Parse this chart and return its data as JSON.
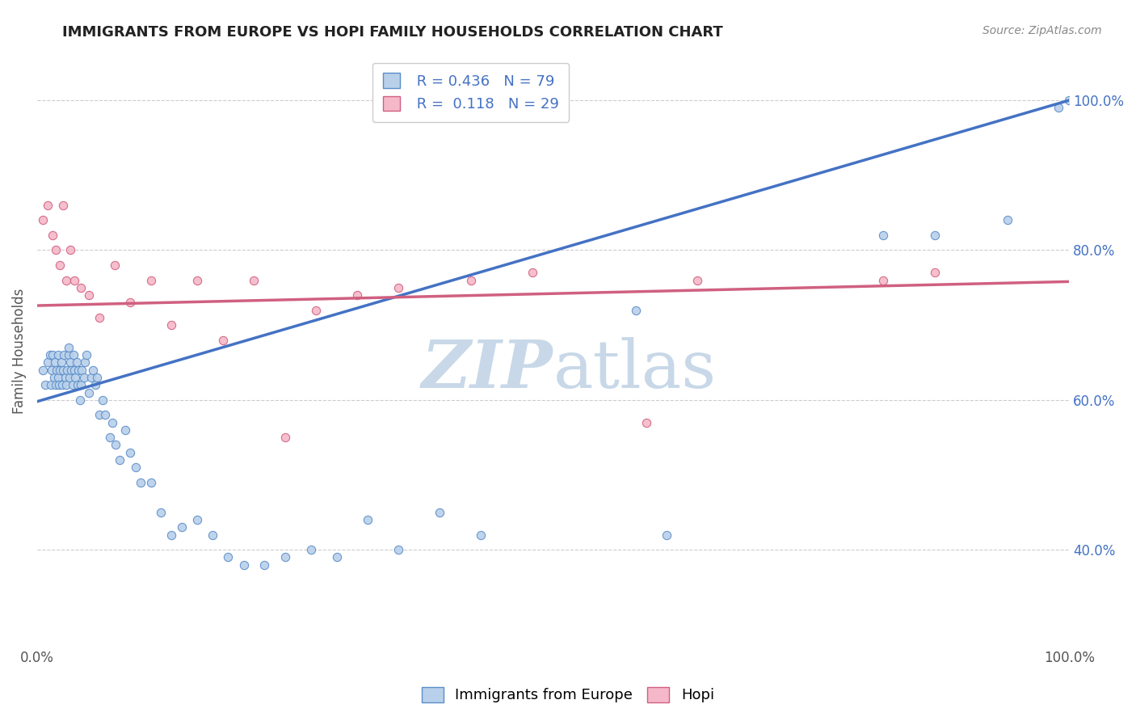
{
  "title": "IMMIGRANTS FROM EUROPE VS HOPI FAMILY HOUSEHOLDS CORRELATION CHART",
  "source": "Source: ZipAtlas.com",
  "ylabel": "Family Households",
  "legend_blue_r": "R = 0.436",
  "legend_blue_n": "N = 79",
  "legend_pink_r": "R =  0.118",
  "legend_pink_n": "N = 29",
  "blue_fill": "#b8d0ea",
  "blue_edge": "#5b8dc8",
  "pink_fill": "#f5b8c8",
  "pink_edge": "#d06080",
  "blue_line": "#4472c4",
  "pink_line": "#d06080",
  "watermark_color": "#c8d8e8",
  "title_color": "#222222",
  "source_color": "#888888",
  "ylabel_color": "#555555",
  "tick_color": "#555555",
  "right_tick_color": "#4472c4",
  "grid_color": "#cccccc",
  "yticks": [
    0.4,
    0.6,
    0.8,
    1.0
  ],
  "ytick_labels": [
    "40.0%",
    "60.0%",
    "80.0%",
    "100.0%"
  ],
  "xticks": [
    0.0,
    1.0
  ],
  "xtick_labels": [
    "0.0%",
    "100.0%"
  ],
  "xlim": [
    0,
    1
  ],
  "ylim": [
    0.27,
    1.06
  ],
  "blue_line_start_y": 0.598,
  "blue_line_end_y": 1.0,
  "pink_line_start_y": 0.726,
  "pink_line_end_y": 0.758,
  "blue_scatter_x": [
    0.005,
    0.008,
    0.01,
    0.012,
    0.013,
    0.014,
    0.015,
    0.016,
    0.017,
    0.018,
    0.019,
    0.02,
    0.02,
    0.021,
    0.022,
    0.023,
    0.024,
    0.025,
    0.026,
    0.027,
    0.028,
    0.029,
    0.03,
    0.03,
    0.031,
    0.032,
    0.033,
    0.034,
    0.035,
    0.036,
    0.037,
    0.038,
    0.039,
    0.04,
    0.041,
    0.042,
    0.043,
    0.045,
    0.046,
    0.048,
    0.05,
    0.052,
    0.054,
    0.056,
    0.058,
    0.06,
    0.063,
    0.066,
    0.07,
    0.073,
    0.076,
    0.08,
    0.085,
    0.09,
    0.095,
    0.1,
    0.11,
    0.12,
    0.13,
    0.14,
    0.155,
    0.17,
    0.185,
    0.2,
    0.22,
    0.24,
    0.265,
    0.29,
    0.32,
    0.35,
    0.39,
    0.43,
    0.58,
    0.61,
    0.82,
    0.87,
    0.94,
    0.99,
    1.0
  ],
  "blue_scatter_y": [
    0.64,
    0.62,
    0.65,
    0.66,
    0.62,
    0.64,
    0.66,
    0.63,
    0.65,
    0.62,
    0.64,
    0.66,
    0.63,
    0.62,
    0.64,
    0.65,
    0.62,
    0.64,
    0.66,
    0.63,
    0.62,
    0.64,
    0.66,
    0.67,
    0.63,
    0.65,
    0.64,
    0.62,
    0.66,
    0.64,
    0.63,
    0.65,
    0.62,
    0.64,
    0.6,
    0.62,
    0.64,
    0.63,
    0.65,
    0.66,
    0.61,
    0.63,
    0.64,
    0.62,
    0.63,
    0.58,
    0.6,
    0.58,
    0.55,
    0.57,
    0.54,
    0.52,
    0.56,
    0.53,
    0.51,
    0.49,
    0.49,
    0.45,
    0.42,
    0.43,
    0.44,
    0.42,
    0.39,
    0.38,
    0.38,
    0.39,
    0.4,
    0.39,
    0.44,
    0.4,
    0.45,
    0.42,
    0.72,
    0.42,
    0.82,
    0.82,
    0.84,
    0.99,
    1.0
  ],
  "pink_scatter_x": [
    0.005,
    0.01,
    0.015,
    0.018,
    0.022,
    0.025,
    0.028,
    0.032,
    0.036,
    0.042,
    0.05,
    0.06,
    0.075,
    0.09,
    0.11,
    0.13,
    0.155,
    0.18,
    0.21,
    0.24,
    0.27,
    0.31,
    0.35,
    0.42,
    0.48,
    0.59,
    0.64,
    0.82,
    0.87
  ],
  "pink_scatter_y": [
    0.84,
    0.86,
    0.82,
    0.8,
    0.78,
    0.86,
    0.76,
    0.8,
    0.76,
    0.75,
    0.74,
    0.71,
    0.78,
    0.73,
    0.76,
    0.7,
    0.76,
    0.68,
    0.76,
    0.55,
    0.72,
    0.74,
    0.75,
    0.76,
    0.77,
    0.57,
    0.76,
    0.76,
    0.77
  ]
}
